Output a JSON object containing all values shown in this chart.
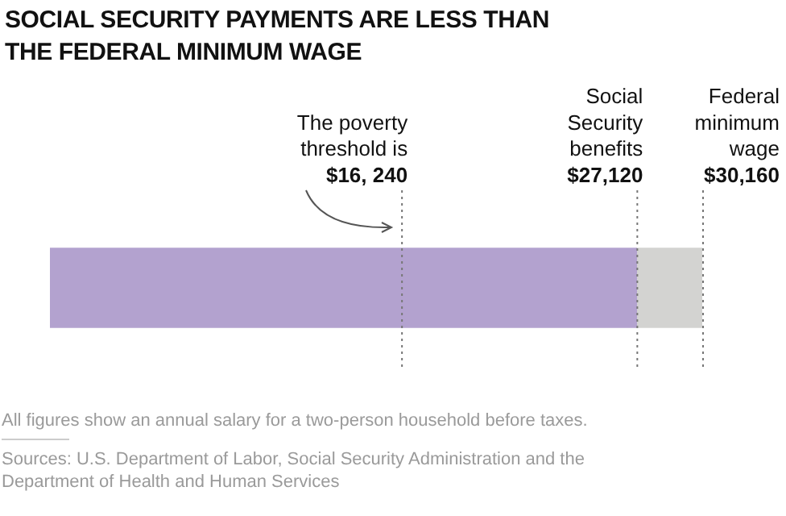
{
  "chart_data": {
    "type": "bar",
    "orientation": "horizontal",
    "title": "SOCIAL SECURITY PAYMENTS ARE LESS THAN THE FEDERAL MINIMUM WAGE",
    "categories": [
      null
    ],
    "series": [
      {
        "color": "#b3a2cf",
        "values": [
          27120
        ]
      },
      {
        "color": "#d3d3d1",
        "values": [
          3040
        ]
      }
    ],
    "stacked": true,
    "xlim": [
      0,
      30160
    ],
    "tick_labels": false,
    "ref_lines": [
      {
        "axis": "x",
        "value": 16240,
        "label": "The poverty\nthreshold is\n$16, 240",
        "color": "#777777",
        "line_style": "dotted"
      },
      {
        "axis": "x",
        "value": 27120,
        "label": "Social\nSecurity\nbenefits\n$27,120",
        "color": "#777777",
        "line_style": "dotted"
      },
      {
        "axis": "x",
        "value": 30160,
        "label": "Federal\nminimum\nwage\n$30,160",
        "color": "#777777",
        "line_style": "dotted"
      }
    ],
    "annotations": [
      "All figures show an annual salary for a two-person household before taxes.",
      "Sources: U.S. Department of Labor, Social Security Administration and the Department of Health and Human Services"
    ]
  }
}
